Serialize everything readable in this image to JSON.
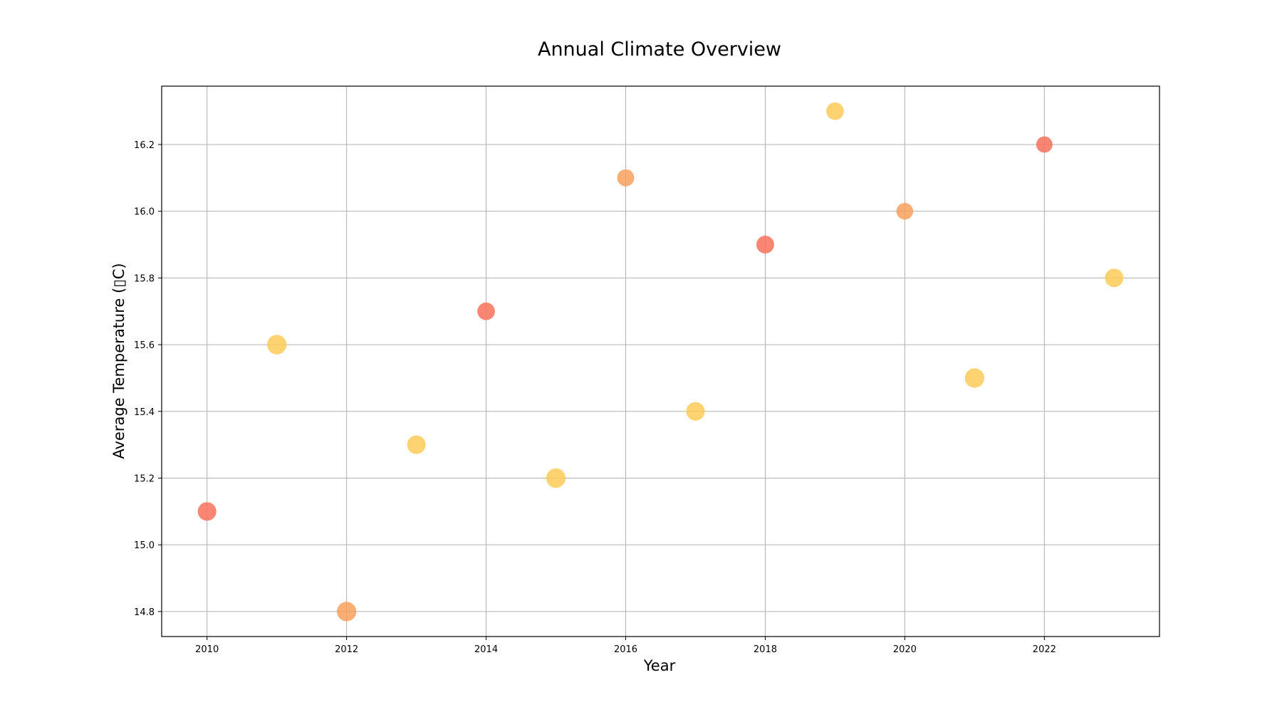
{
  "chart_data": {
    "type": "scatter",
    "title": "Annual Climate Overview",
    "xlabel": "Year",
    "ylabel": "Average Temperature (▯C)",
    "xlim": [
      2009.35,
      2023.65
    ],
    "ylim": [
      14.725,
      16.375
    ],
    "grid": true,
    "x_ticks": [
      2010,
      2012,
      2014,
      2016,
      2018,
      2020,
      2022
    ],
    "y_ticks": [
      14.8,
      15.0,
      15.2,
      15.4,
      15.6,
      15.8,
      16.0,
      16.2
    ],
    "points": [
      {
        "x": 2010,
        "y": 15.1,
        "color": "#f8705a",
        "size": 1.0
      },
      {
        "x": 2011,
        "y": 15.6,
        "color": "#fdca58",
        "size": 1.05
      },
      {
        "x": 2012,
        "y": 14.8,
        "color": "#f8a05a",
        "size": 1.05
      },
      {
        "x": 2013,
        "y": 15.3,
        "color": "#fdca58",
        "size": 1.0
      },
      {
        "x": 2014,
        "y": 15.7,
        "color": "#f8705a",
        "size": 0.95
      },
      {
        "x": 2015,
        "y": 15.2,
        "color": "#fdca58",
        "size": 1.05
      },
      {
        "x": 2016,
        "y": 16.1,
        "color": "#f8a05a",
        "size": 0.92
      },
      {
        "x": 2017,
        "y": 15.4,
        "color": "#fdca58",
        "size": 1.0
      },
      {
        "x": 2018,
        "y": 15.9,
        "color": "#f8705a",
        "size": 0.96
      },
      {
        "x": 2019,
        "y": 16.3,
        "color": "#fdca58",
        "size": 0.95
      },
      {
        "x": 2020,
        "y": 16.0,
        "color": "#f8a05a",
        "size": 0.9
      },
      {
        "x": 2021,
        "y": 15.5,
        "color": "#fdca58",
        "size": 1.05
      },
      {
        "x": 2022,
        "y": 16.2,
        "color": "#f8705a",
        "size": 0.88
      },
      {
        "x": 2023,
        "y": 15.8,
        "color": "#fdca58",
        "size": 1.0
      }
    ]
  }
}
